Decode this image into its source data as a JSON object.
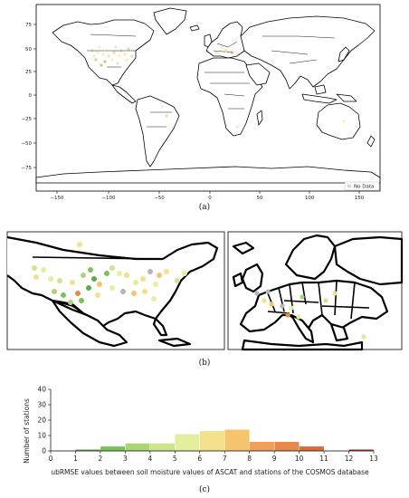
{
  "colors": {
    "no_data": "#b5b5b5",
    "bins": [
      "#3a9a3a",
      "#56b04a",
      "#7cc25a",
      "#a8d670",
      "#cfe58c",
      "#e5ed9e",
      "#f2e08c",
      "#f6c36e",
      "#f0a05a",
      "#e58a4c",
      "#d96a3a",
      "#cc4a30",
      "#bb2a24"
    ]
  },
  "panel_a": {
    "caption": "(a)",
    "x_ticks": [
      "−150",
      "−100",
      "−50",
      "0",
      "50",
      "100",
      "150"
    ],
    "y_ticks": [
      "75",
      "50",
      "25",
      "0",
      "−25",
      "−50",
      "−75"
    ],
    "legend_label": "No Data"
  },
  "panel_b": {
    "caption": "(b)"
  },
  "panel_c": {
    "caption": "(c)"
  },
  "chart_data": [
    {
      "type": "scatter",
      "title": "",
      "xlim": [
        -180,
        180
      ],
      "ylim": [
        -90,
        90
      ],
      "grid": false,
      "legend": [
        "No Data"
      ],
      "legend_placement": "bottom-right"
    },
    {
      "type": "bar",
      "title": "",
      "xlabel": "ubRMSE values between soil moisture values of ASCAT and stations of the COSMOS database",
      "ylabel": "Number of stations",
      "ylim": [
        0,
        40
      ],
      "y_ticks": [
        0,
        10,
        20,
        30,
        40
      ],
      "x_ticks": [
        "0",
        "1",
        "2",
        "3",
        "4",
        "5",
        "6",
        "7",
        "8",
        "9",
        "10",
        "11",
        "12",
        "13"
      ],
      "bins": [
        {
          "from": 1,
          "to": 2,
          "count": 1
        },
        {
          "from": 2,
          "to": 3,
          "count": 3
        },
        {
          "from": 3,
          "to": 4,
          "count": 5
        },
        {
          "from": 4,
          "to": 5,
          "count": 5
        },
        {
          "from": 5,
          "to": 6,
          "count": 11
        },
        {
          "from": 6,
          "to": 7,
          "count": 13
        },
        {
          "from": 7,
          "to": 8,
          "count": 14
        },
        {
          "from": 8,
          "to": 9,
          "count": 6
        },
        {
          "from": 9,
          "to": 10,
          "count": 6
        },
        {
          "from": 10,
          "to": 11,
          "count": 3
        },
        {
          "from": 12,
          "to": 13,
          "count": 1
        }
      ]
    }
  ]
}
